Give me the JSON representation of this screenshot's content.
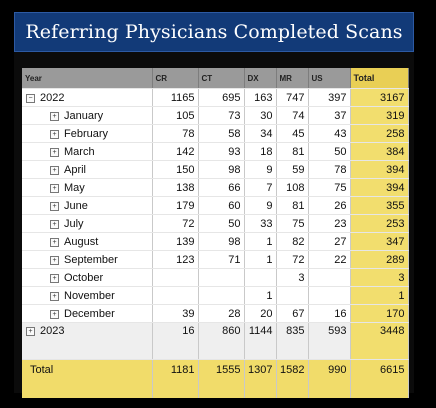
{
  "title": "Referring Physicians Completed Scans",
  "columns": {
    "year": "Year",
    "cr": "CR",
    "ct": "CT",
    "dx": "DX",
    "mr": "MR",
    "us": "US",
    "total": "Total"
  },
  "toggles": {
    "expanded": "−",
    "collapsed": "+"
  },
  "y2022": {
    "label": "2022",
    "cr": "1165",
    "ct": "695",
    "dx": "163",
    "mr": "747",
    "us": "397",
    "total": "3167"
  },
  "months": [
    {
      "label": "January",
      "cr": "105",
      "ct": "73",
      "dx": "30",
      "mr": "74",
      "us": "37",
      "total": "319"
    },
    {
      "label": "February",
      "cr": "78",
      "ct": "58",
      "dx": "34",
      "mr": "45",
      "us": "43",
      "total": "258"
    },
    {
      "label": "March",
      "cr": "142",
      "ct": "93",
      "dx": "18",
      "mr": "81",
      "us": "50",
      "total": "384"
    },
    {
      "label": "April",
      "cr": "150",
      "ct": "98",
      "dx": "9",
      "mr": "59",
      "us": "78",
      "total": "394"
    },
    {
      "label": "May",
      "cr": "138",
      "ct": "66",
      "dx": "7",
      "mr": "108",
      "us": "75",
      "total": "394"
    },
    {
      "label": "June",
      "cr": "179",
      "ct": "60",
      "dx": "9",
      "mr": "81",
      "us": "26",
      "total": "355"
    },
    {
      "label": "July",
      "cr": "72",
      "ct": "50",
      "dx": "33",
      "mr": "75",
      "us": "23",
      "total": "253"
    },
    {
      "label": "August",
      "cr": "139",
      "ct": "98",
      "dx": "1",
      "mr": "82",
      "us": "27",
      "total": "347"
    },
    {
      "label": "September",
      "cr": "123",
      "ct": "71",
      "dx": "1",
      "mr": "72",
      "us": "22",
      "total": "289"
    },
    {
      "label": "October",
      "cr": "",
      "ct": "",
      "dx": "",
      "mr": "3",
      "us": "",
      "total": "3"
    },
    {
      "label": "November",
      "cr": "",
      "ct": "",
      "dx": "1",
      "mr": "",
      "us": "",
      "total": "1"
    },
    {
      "label": "December",
      "cr": "39",
      "ct": "28",
      "dx": "20",
      "mr": "67",
      "us": "16",
      "total": "170"
    }
  ],
  "y2023": {
    "label": "2023",
    "cr": "16",
    "ct": "860",
    "dx": "1144",
    "mr": "835",
    "us": "593",
    "total": "3448"
  },
  "grand_total": {
    "label": "Total",
    "cr": "1181",
    "ct": "1555",
    "dx": "1307",
    "mr": "1582",
    "us": "990",
    "total": "6615"
  },
  "colors": {
    "title_bg": "#123a78",
    "header_bg": "#9a9a9a",
    "total_bg": "#f2de6e",
    "page_bg": "#000000"
  }
}
